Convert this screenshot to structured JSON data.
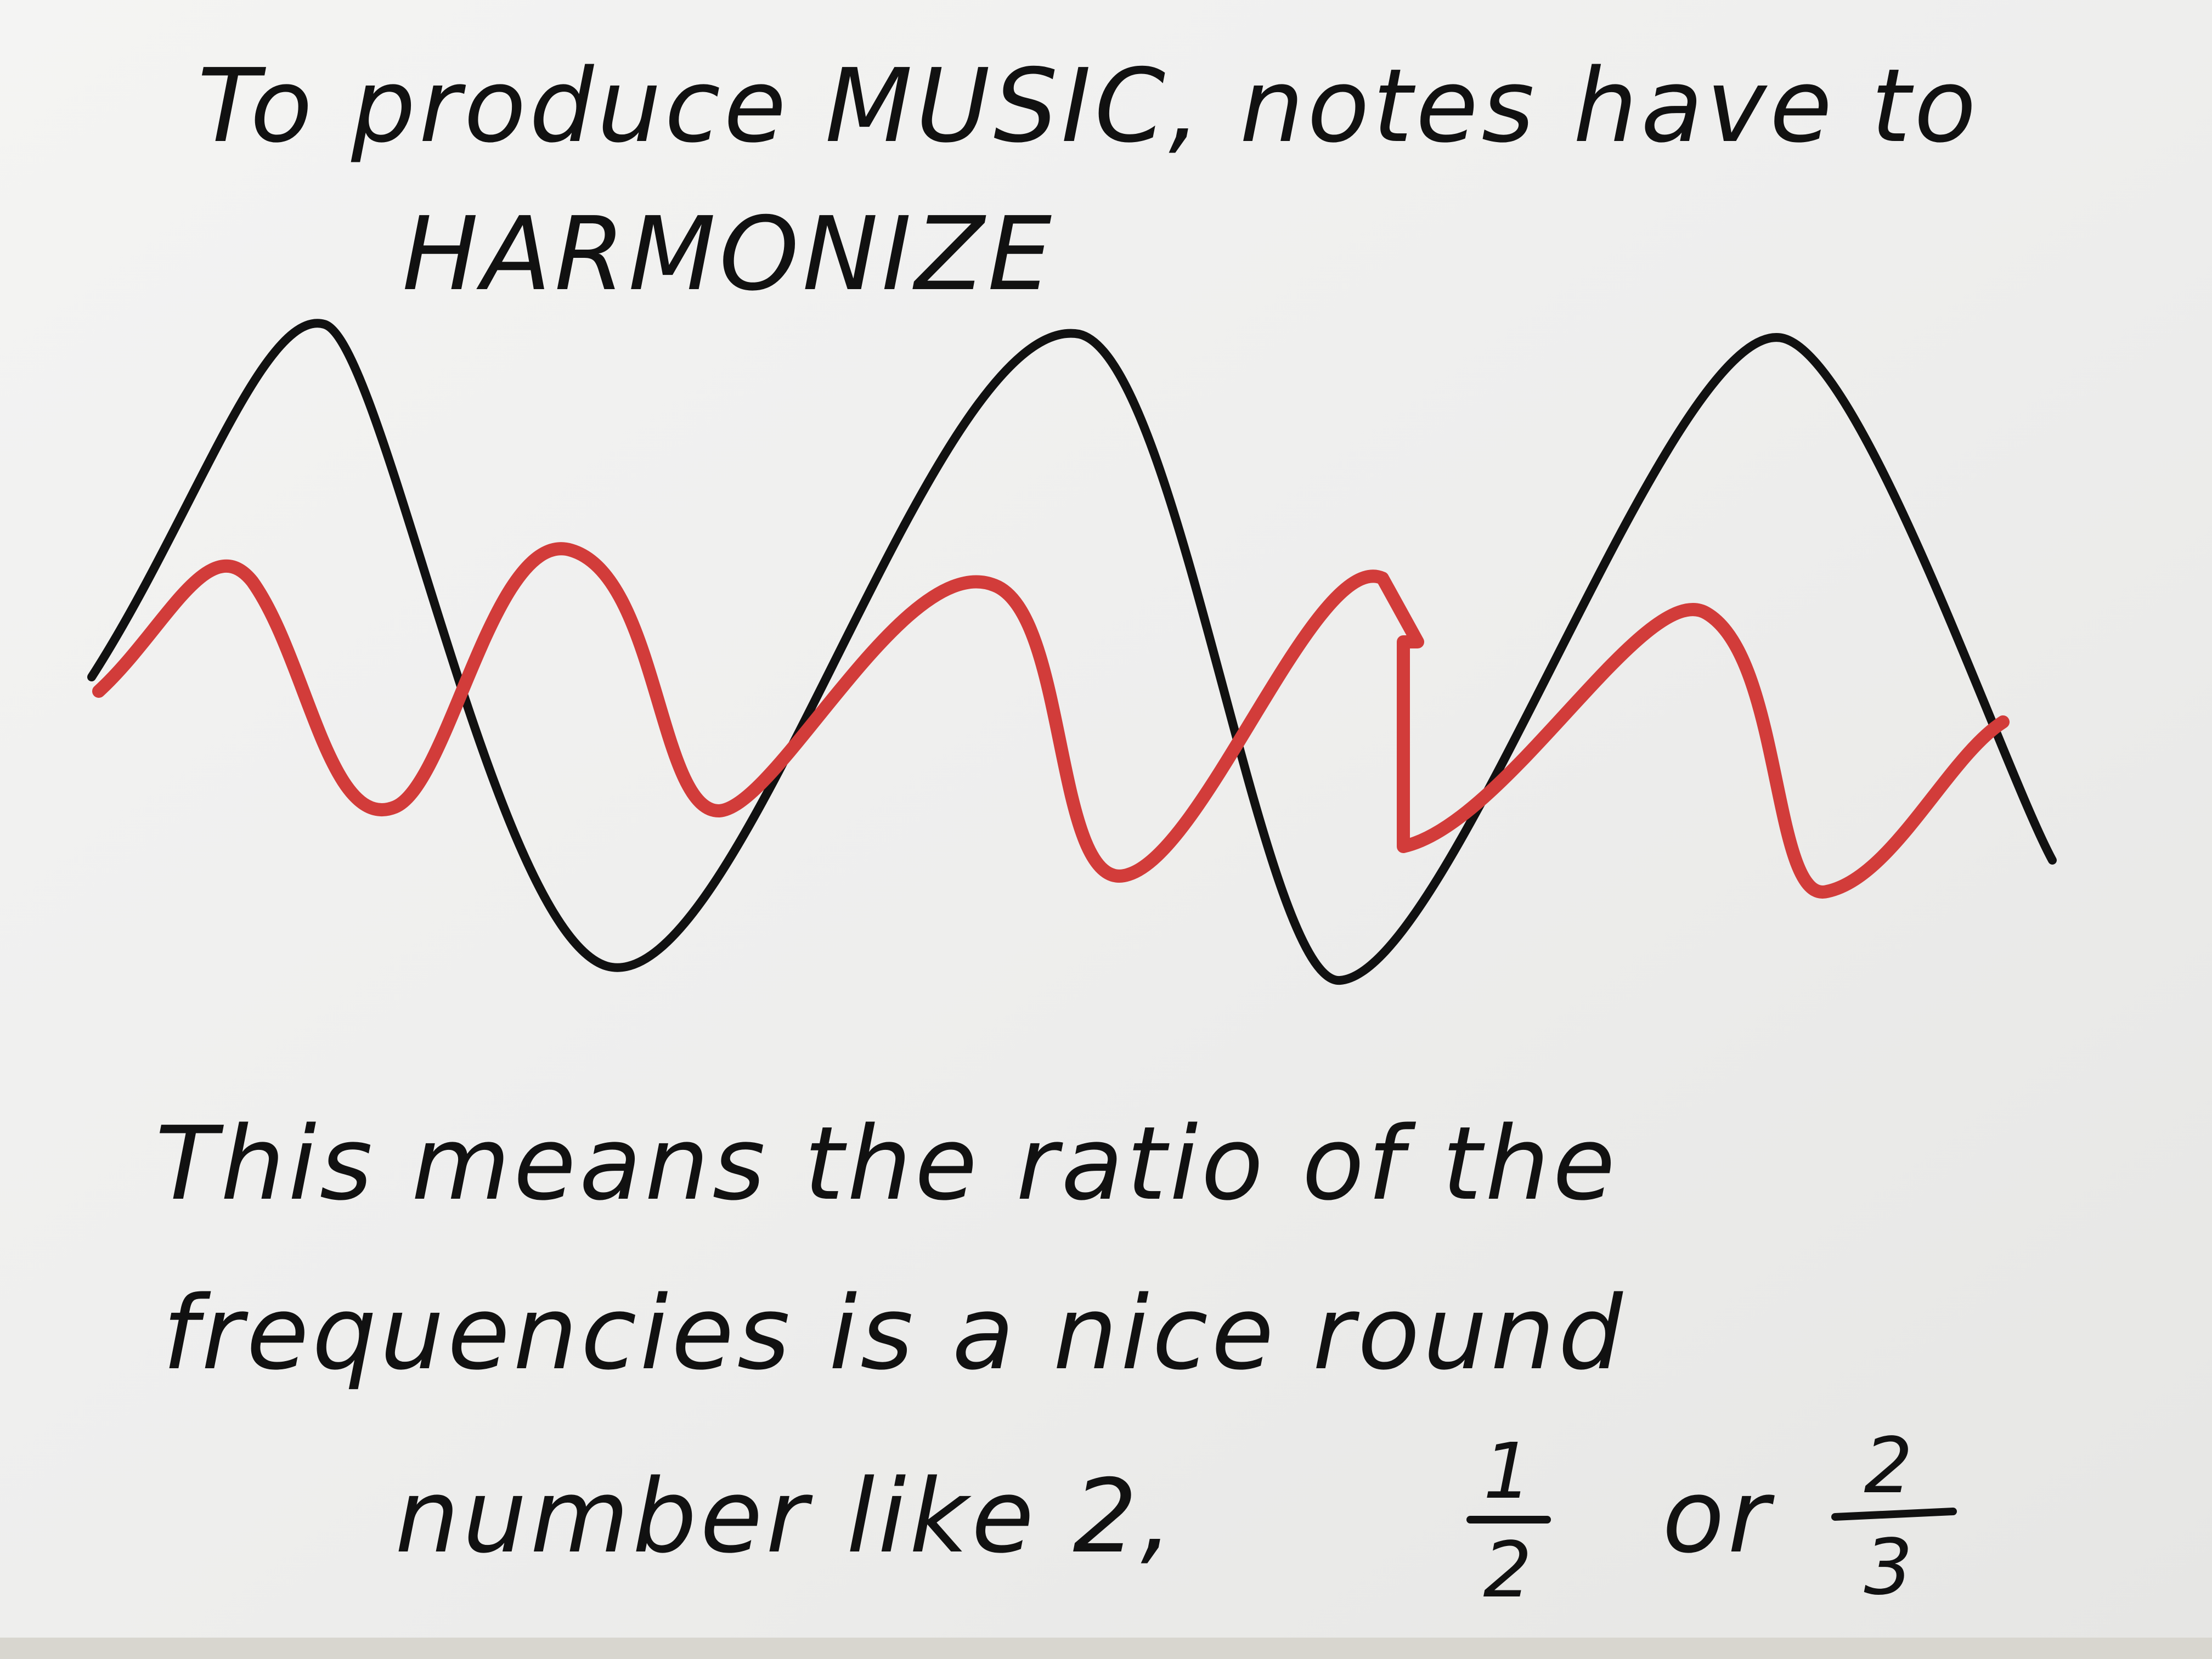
{
  "header": {
    "lines": [
      "To produce MUSIC, notes have to",
      "HARMONIZE"
    ]
  },
  "caption": {
    "lines": [
      "This means the ratio of the",
      "frequencies is a nice round",
      "number like 2,"
    ],
    "fractions": [
      {
        "numerator": "1",
        "denominator": "2"
      },
      {
        "numerator": "2",
        "denominator": "3"
      }
    ],
    "conjunction": "or"
  }
}
